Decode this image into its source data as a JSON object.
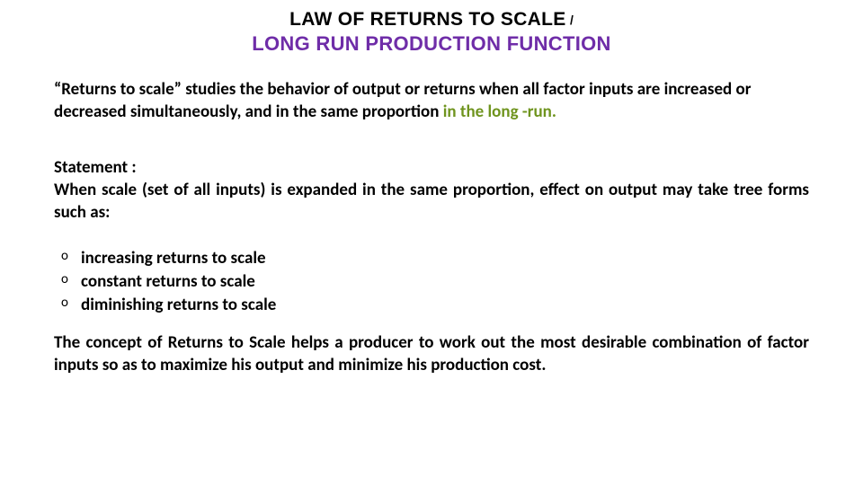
{
  "title": {
    "line1": "LAW OF RETURNS TO SCALE",
    "slash": "/",
    "line2": "LONG RUN PRODUCTION FUNCTION"
  },
  "intro": {
    "part1": "“Returns to scale” studies the behavior of output or returns when all factor inputs are increased or decreased simultaneously, and in the same proportion ",
    "accent": "in the long -run."
  },
  "statement": {
    "label": "Statement :",
    "body": "When scale (set of  all inputs) is expanded in the same proportion, effect on output may  take tree forms such as:"
  },
  "bullets": [
    "increasing returns  to scale",
    "constant returns  to scale",
    " diminishing  returns to scale"
  ],
  "conclusion": "The concept of Returns to Scale helps a producer to work out the most desirable combination  of factor inputs so as to maximize his output and minimize his production cost."
}
